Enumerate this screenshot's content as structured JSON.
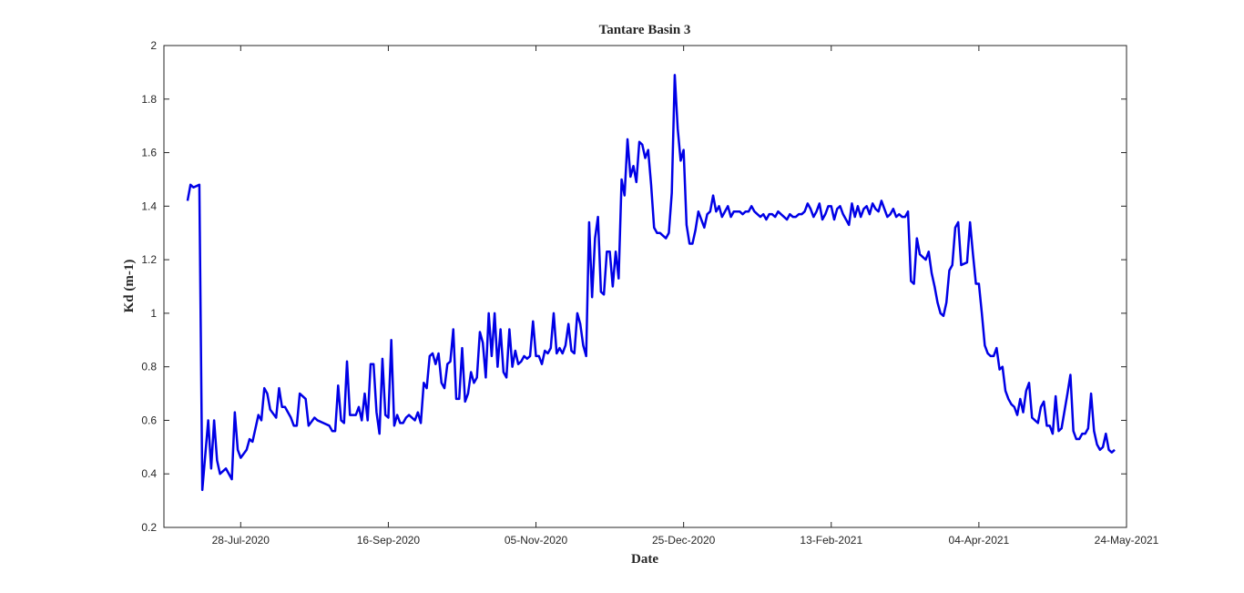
{
  "chart_data": {
    "type": "line",
    "title": "Tantare Basin 3",
    "xlabel": "Date",
    "ylabel": "Kd (m-1)",
    "color": "#0000e6",
    "xlim": [
      "2020-07-02",
      "2021-05-24"
    ],
    "xticks": [
      {
        "value": "2020-07-28",
        "label": "28-Jul-2020"
      },
      {
        "value": "2020-09-16",
        "label": "16-Sep-2020"
      },
      {
        "value": "2020-11-05",
        "label": "05-Nov-2020"
      },
      {
        "value": "2020-12-25",
        "label": "25-Dec-2020"
      },
      {
        "value": "2021-02-13",
        "label": "13-Feb-2021"
      },
      {
        "value": "2021-04-04",
        "label": "04-Apr-2021"
      },
      {
        "value": "2021-05-24",
        "label": "24-May-2021"
      }
    ],
    "ylim": [
      0.2,
      2
    ],
    "yticks": [
      0.2,
      0.4,
      0.6,
      0.8,
      1,
      1.2,
      1.4,
      1.6,
      1.8,
      2
    ],
    "x": [
      "2020-07-10",
      "2020-07-11",
      "2020-07-12",
      "2020-07-14",
      "2020-07-15",
      "2020-07-17",
      "2020-07-18",
      "2020-07-19",
      "2020-07-20",
      "2020-07-21",
      "2020-07-23",
      "2020-07-25",
      "2020-07-26",
      "2020-07-27",
      "2020-07-28",
      "2020-07-30",
      "2020-07-31",
      "2020-08-01",
      "2020-08-03",
      "2020-08-04",
      "2020-08-05",
      "2020-08-06",
      "2020-08-07",
      "2020-08-09",
      "2020-08-10",
      "2020-08-11",
      "2020-08-12",
      "2020-08-14",
      "2020-08-15",
      "2020-08-16",
      "2020-08-17",
      "2020-08-19",
      "2020-08-20",
      "2020-08-22",
      "2020-08-23",
      "2020-08-25",
      "2020-08-27",
      "2020-08-28",
      "2020-08-29",
      "2020-08-30",
      "2020-08-31",
      "2020-09-01",
      "2020-09-02",
      "2020-09-03",
      "2020-09-05",
      "2020-09-06",
      "2020-09-07",
      "2020-09-08",
      "2020-09-09",
      "2020-09-10",
      "2020-09-11",
      "2020-09-12",
      "2020-09-13",
      "2020-09-14",
      "2020-09-15",
      "2020-09-16",
      "2020-09-17",
      "2020-09-18",
      "2020-09-19",
      "2020-09-20",
      "2020-09-21",
      "2020-09-22",
      "2020-09-23",
      "2020-09-25",
      "2020-09-26",
      "2020-09-27",
      "2020-09-28",
      "2020-09-29",
      "2020-09-30",
      "2020-10-01",
      "2020-10-02",
      "2020-10-03",
      "2020-10-04",
      "2020-10-05",
      "2020-10-06",
      "2020-10-07",
      "2020-10-08",
      "2020-10-09",
      "2020-10-10",
      "2020-10-11",
      "2020-10-12",
      "2020-10-13",
      "2020-10-14",
      "2020-10-15",
      "2020-10-16",
      "2020-10-17",
      "2020-10-18",
      "2020-10-19",
      "2020-10-20",
      "2020-10-21",
      "2020-10-22",
      "2020-10-23",
      "2020-10-24",
      "2020-10-25",
      "2020-10-26",
      "2020-10-27",
      "2020-10-28",
      "2020-10-29",
      "2020-10-30",
      "2020-10-31",
      "2020-11-01",
      "2020-11-02",
      "2020-11-03",
      "2020-11-04",
      "2020-11-05",
      "2020-11-06",
      "2020-11-07",
      "2020-11-08",
      "2020-11-09",
      "2020-11-10",
      "2020-11-11",
      "2020-11-12",
      "2020-11-13",
      "2020-11-14",
      "2020-11-15",
      "2020-11-16",
      "2020-11-17",
      "2020-11-18",
      "2020-11-19",
      "2020-11-20",
      "2020-11-21",
      "2020-11-22",
      "2020-11-23",
      "2020-11-24",
      "2020-11-25",
      "2020-11-26",
      "2020-11-27",
      "2020-11-28",
      "2020-11-29",
      "2020-11-30",
      "2020-12-01",
      "2020-12-02",
      "2020-12-03",
      "2020-12-04",
      "2020-12-05",
      "2020-12-06",
      "2020-12-07",
      "2020-12-08",
      "2020-12-09",
      "2020-12-10",
      "2020-12-11",
      "2020-12-12",
      "2020-12-13",
      "2020-12-14",
      "2020-12-15",
      "2020-12-16",
      "2020-12-17",
      "2020-12-18",
      "2020-12-19",
      "2020-12-20",
      "2020-12-21",
      "2020-12-22",
      "2020-12-23",
      "2020-12-24",
      "2020-12-25",
      "2020-12-26",
      "2020-12-27",
      "2020-12-28",
      "2020-12-29",
      "2020-12-30",
      "2020-12-31",
      "2021-01-01",
      "2021-01-02",
      "2021-01-03",
      "2021-01-04",
      "2021-01-05",
      "2021-01-06",
      "2021-01-07",
      "2021-01-08",
      "2021-01-09",
      "2021-01-10",
      "2021-01-11",
      "2021-01-12",
      "2021-01-13",
      "2021-01-14",
      "2021-01-15",
      "2021-01-16",
      "2021-01-17",
      "2021-01-18",
      "2021-01-19",
      "2021-01-20",
      "2021-01-21",
      "2021-01-22",
      "2021-01-23",
      "2021-01-24",
      "2021-01-25",
      "2021-01-26",
      "2021-01-27",
      "2021-01-28",
      "2021-01-29",
      "2021-01-30",
      "2021-01-31",
      "2021-02-01",
      "2021-02-02",
      "2021-02-03",
      "2021-02-04",
      "2021-02-05",
      "2021-02-06",
      "2021-02-07",
      "2021-02-08",
      "2021-02-09",
      "2021-02-10",
      "2021-02-11",
      "2021-02-12",
      "2021-02-13",
      "2021-02-14",
      "2021-02-15",
      "2021-02-16",
      "2021-02-17",
      "2021-02-18",
      "2021-02-19",
      "2021-02-20",
      "2021-02-21",
      "2021-02-22",
      "2021-02-23",
      "2021-02-24",
      "2021-02-25",
      "2021-02-26",
      "2021-02-27",
      "2021-02-28",
      "2021-03-01",
      "2021-03-02",
      "2021-03-03",
      "2021-03-04",
      "2021-03-05",
      "2021-03-06",
      "2021-03-07",
      "2021-03-08",
      "2021-03-09",
      "2021-03-10",
      "2021-03-11",
      "2021-03-12",
      "2021-03-13",
      "2021-03-14",
      "2021-03-15",
      "2021-03-16",
      "2021-03-17",
      "2021-03-18",
      "2021-03-19",
      "2021-03-20",
      "2021-03-21",
      "2021-03-22",
      "2021-03-23",
      "2021-03-24",
      "2021-03-25",
      "2021-03-26",
      "2021-03-27",
      "2021-03-28",
      "2021-03-29",
      "2021-03-31",
      "2021-04-01",
      "2021-04-02",
      "2021-04-03",
      "2021-04-04",
      "2021-04-05",
      "2021-04-06",
      "2021-04-07",
      "2021-04-08",
      "2021-04-09",
      "2021-04-10",
      "2021-04-11",
      "2021-04-12",
      "2021-04-13",
      "2021-04-14",
      "2021-04-15",
      "2021-04-16",
      "2021-04-17",
      "2021-04-18",
      "2021-04-19",
      "2021-04-20",
      "2021-04-21",
      "2021-04-22",
      "2021-04-23",
      "2021-04-24",
      "2021-04-25",
      "2021-04-26",
      "2021-04-27",
      "2021-04-28",
      "2021-04-29",
      "2021-04-30",
      "2021-05-01",
      "2021-05-02",
      "2021-05-04",
      "2021-05-05",
      "2021-05-06",
      "2021-05-07",
      "2021-05-08",
      "2021-05-09",
      "2021-05-10",
      "2021-05-11",
      "2021-05-12",
      "2021-05-13",
      "2021-05-14",
      "2021-05-15",
      "2021-05-16",
      "2021-05-17",
      "2021-05-18",
      "2021-05-19",
      "2021-05-20"
    ],
    "values": [
      1.42,
      1.48,
      1.47,
      1.48,
      0.34,
      0.6,
      0.42,
      0.6,
      0.45,
      0.4,
      0.42,
      0.38,
      0.63,
      0.49,
      0.46,
      0.49,
      0.53,
      0.52,
      0.62,
      0.6,
      0.72,
      0.7,
      0.64,
      0.61,
      0.72,
      0.65,
      0.65,
      0.61,
      0.58,
      0.58,
      0.7,
      0.68,
      0.58,
      0.61,
      0.6,
      0.59,
      0.58,
      0.56,
      0.56,
      0.73,
      0.6,
      0.59,
      0.82,
      0.62,
      0.62,
      0.65,
      0.6,
      0.7,
      0.6,
      0.81,
      0.81,
      0.63,
      0.55,
      0.83,
      0.62,
      0.61,
      0.9,
      0.58,
      0.62,
      0.59,
      0.59,
      0.61,
      0.62,
      0.6,
      0.63,
      0.59,
      0.74,
      0.72,
      0.84,
      0.85,
      0.81,
      0.85,
      0.74,
      0.72,
      0.81,
      0.82,
      0.94,
      0.68,
      0.68,
      0.87,
      0.67,
      0.7,
      0.78,
      0.74,
      0.76,
      0.93,
      0.89,
      0.76,
      1.0,
      0.84,
      1.0,
      0.8,
      0.94,
      0.78,
      0.76,
      0.94,
      0.8,
      0.86,
      0.81,
      0.82,
      0.84,
      0.83,
      0.84,
      0.97,
      0.84,
      0.84,
      0.81,
      0.86,
      0.85,
      0.87,
      1.0,
      0.85,
      0.87,
      0.85,
      0.88,
      0.96,
      0.86,
      0.85,
      1.0,
      0.96,
      0.88,
      0.84,
      1.34,
      1.06,
      1.28,
      1.36,
      1.08,
      1.07,
      1.23,
      1.23,
      1.1,
      1.23,
      1.13,
      1.5,
      1.44,
      1.65,
      1.51,
      1.55,
      1.49,
      1.64,
      1.63,
      1.58,
      1.61,
      1.48,
      1.32,
      1.3,
      1.3,
      1.29,
      1.28,
      1.3,
      1.45,
      1.89,
      1.69,
      1.57,
      1.61,
      1.33,
      1.26,
      1.26,
      1.31,
      1.38,
      1.35,
      1.32,
      1.37,
      1.38,
      1.44,
      1.38,
      1.4,
      1.36,
      1.38,
      1.4,
      1.36,
      1.38,
      1.38,
      1.38,
      1.37,
      1.38,
      1.38,
      1.4,
      1.38,
      1.37,
      1.36,
      1.37,
      1.35,
      1.37,
      1.37,
      1.36,
      1.38,
      1.37,
      1.36,
      1.35,
      1.37,
      1.36,
      1.36,
      1.37,
      1.37,
      1.38,
      1.41,
      1.39,
      1.36,
      1.38,
      1.41,
      1.35,
      1.37,
      1.4,
      1.4,
      1.35,
      1.39,
      1.4,
      1.37,
      1.35,
      1.33,
      1.41,
      1.36,
      1.4,
      1.36,
      1.39,
      1.4,
      1.37,
      1.41,
      1.39,
      1.38,
      1.42,
      1.39,
      1.36,
      1.37,
      1.39,
      1.36,
      1.37,
      1.36,
      1.36,
      1.38,
      1.12,
      1.11,
      1.28,
      1.22,
      1.21,
      1.2,
      1.23,
      1.15,
      1.1,
      1.04,
      1.0,
      0.99,
      1.04,
      1.16,
      1.18,
      1.32,
      1.34,
      1.18,
      1.19,
      1.34,
      1.22,
      1.11,
      1.11,
      1.0,
      0.88,
      0.85,
      0.84,
      0.84,
      0.87,
      0.79,
      0.8,
      0.71,
      0.68,
      0.66,
      0.65,
      0.62,
      0.68,
      0.63,
      0.71,
      0.74,
      0.61,
      0.6,
      0.59,
      0.65,
      0.67,
      0.58,
      0.58,
      0.55,
      0.69,
      0.56,
      0.57,
      0.7,
      0.77,
      0.56,
      0.53,
      0.53,
      0.55,
      0.55,
      0.57,
      0.7,
      0.56,
      0.51,
      0.49,
      0.5,
      0.55,
      0.49,
      0.48,
      0.49
    ]
  }
}
